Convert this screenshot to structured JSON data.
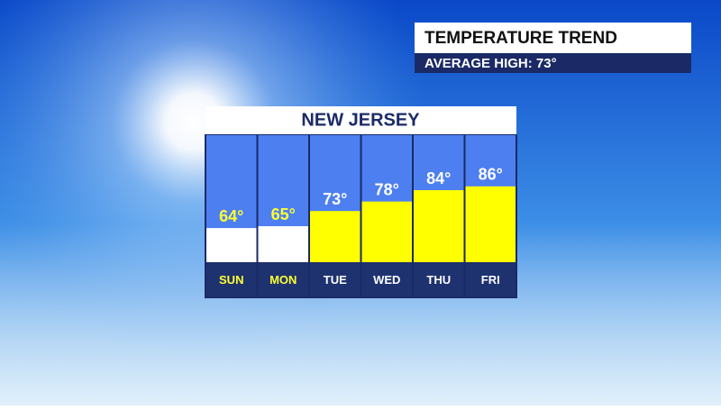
{
  "header": {
    "title": "TEMPERATURE TREND",
    "subtitle": "AVERAGE HIGH:  73°"
  },
  "chart_data": {
    "type": "bar",
    "title": "NEW JERSEY",
    "categories": [
      "SUN",
      "MON",
      "TUE",
      "WED",
      "THU",
      "FRI"
    ],
    "values": [
      64,
      65,
      73,
      78,
      84,
      86
    ],
    "value_labels": [
      "64°",
      "65°",
      "73°",
      "78°",
      "84°",
      "86°"
    ],
    "colors": [
      "#ffffff",
      "#ffffff",
      "#ffff00",
      "#ffff00",
      "#ffff00",
      "#ffff00"
    ],
    "label_colors": [
      "#ffff33",
      "#ffff33",
      "#ffffff",
      "#ffffff",
      "#ffffff",
      "#ffffff"
    ],
    "ylim": [
      46,
      113
    ]
  }
}
